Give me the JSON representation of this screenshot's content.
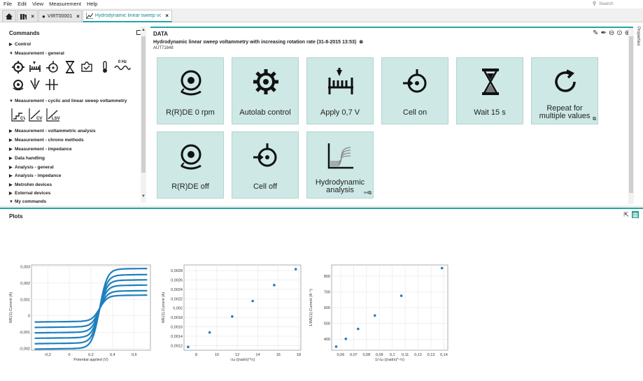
{
  "menu": [
    "File",
    "Edit",
    "View",
    "Measurement",
    "Help"
  ],
  "search": {
    "placeholder": "Search"
  },
  "tabs": [
    {
      "label": "VIRT00001"
    },
    {
      "label": "Hydrodynamic linear sweep volt..."
    }
  ],
  "commands": {
    "title": "Commands",
    "groups": [
      {
        "label": "Control",
        "expanded": false
      },
      {
        "label": "Measurement - general",
        "expanded": true
      },
      {
        "label": "Measurement - cyclic and linear sweep voltammetry",
        "expanded": true
      },
      {
        "label": "Measurement - voltammetric analysis",
        "expanded": false
      },
      {
        "label": "Measurement - chrono methods",
        "expanded": false
      },
      {
        "label": "Measurement - impedance",
        "expanded": false
      },
      {
        "label": "Data handling",
        "expanded": false
      },
      {
        "label": "Analysis - general",
        "expanded": false
      },
      {
        "label": "Analysis - impedance",
        "expanded": false
      },
      {
        "label": "Metrohm devices",
        "expanded": false
      },
      {
        "label": "External devices",
        "expanded": false
      },
      {
        "label": "My commands",
        "expanded": true
      }
    ],
    "general_icons": [
      "rotating-electrode-icon",
      "apply-potential-icon",
      "cell-icon",
      "hourglass-icon",
      "record-signal-icon",
      "thermometer-icon",
      "frequency-0hz-icon",
      "drop-electrode-icon",
      "electrode-icon",
      "split-icon"
    ],
    "zero_hz_label": "0 Hz",
    "sweep_icons": [
      "CV",
      "CV",
      "LSV"
    ]
  },
  "data_panel": {
    "title": "DATA",
    "subtitle": "Hydrodynamic linear sweep voltammetry with increasing rotation rate (31-8-2015 13:53)",
    "instrument": "AUT71848",
    "tiles": [
      {
        "label": "R(R)DE 0 rpm",
        "icon": "rotating-electrode-icon"
      },
      {
        "label": "Autolab control",
        "icon": "gear-icon"
      },
      {
        "label": "Apply 0,7 V",
        "icon": "apply-potential-icon"
      },
      {
        "label": "Cell on",
        "icon": "cell-icon"
      },
      {
        "label": "Wait 15 s",
        "icon": "hourglass-icon"
      },
      {
        "label_line1": "Repeat for",
        "label_line2": "multiple values",
        "icon": "repeat-icon"
      },
      {
        "label": "R(R)DE off",
        "icon": "rotating-electrode-icon"
      },
      {
        "label": "Cell off",
        "icon": "cell-icon"
      },
      {
        "label_line1": "Hydrodynamic",
        "label_line2": "analysis",
        "icon": "hydrodynamic-plot-icon"
      }
    ]
  },
  "properties_label": "Properties",
  "plots": {
    "title": "Plots"
  },
  "chart_data": [
    {
      "type": "line",
      "xlabel": "Potential applied (V)",
      "ylabel": "WE(1).Current (A)",
      "xlim": [
        -0.35,
        0.75
      ],
      "ylim": [
        -0.0021,
        0.0031
      ],
      "x_ticks": [
        "-0,2",
        "0",
        "0,2",
        "0,4",
        "0,6"
      ],
      "x_tick_values": [
        -0.2,
        0,
        0.2,
        0.4,
        0.6
      ],
      "y_ticks": [
        "-0,002",
        "-0,001",
        "0",
        "0,001",
        "0,002",
        "0,003"
      ],
      "y_tick_values": [
        -0.002,
        -0.001,
        0,
        0.001,
        0.002,
        0.003
      ],
      "series": [
        {
          "low": -0.00033,
          "high": 0.00123
        },
        {
          "low": -0.00066,
          "high": 0.0015
        },
        {
          "low": -0.00099,
          "high": 0.00184
        },
        {
          "low": -0.00132,
          "high": 0.00216
        },
        {
          "low": -0.00165,
          "high": 0.00248
        },
        {
          "low": -0.00198,
          "high": 0.00285
        }
      ],
      "color": "#1f7fbf"
    },
    {
      "type": "scatter",
      "xlabel": "√ω ((rad/s)^½)",
      "ylabel": "WE(1).Current (A)",
      "xlim": [
        6.8,
        18.2
      ],
      "ylim": [
        0.0011,
        0.00292
      ],
      "x_ticks": [
        "8",
        "10",
        "12",
        "14",
        "16",
        "18"
      ],
      "x_tick_values": [
        8,
        10,
        12,
        14,
        16,
        18
      ],
      "y_ticks": [
        "0,0012",
        "0,0014",
        "0,0016",
        "0,0018",
        "0,002",
        "0,0022",
        "0,0024",
        "0,0026",
        "0,0028"
      ],
      "y_tick_values": [
        0.0012,
        0.0014,
        0.0016,
        0.0018,
        0.002,
        0.0022,
        0.0024,
        0.0026,
        0.0028
      ],
      "x": [
        7.2,
        9.3,
        11.5,
        13.5,
        15.6,
        17.7
      ],
      "y": [
        0.00117,
        0.00148,
        0.00182,
        0.00215,
        0.00249,
        0.00283
      ],
      "color": "#1f7fbf"
    },
    {
      "type": "scatter",
      "xlabel": "1/√ω ((rad/s)^-½)",
      "ylabel": "1/WE(1).Current (A⁻¹)",
      "xlim": [
        0.053,
        0.143
      ],
      "ylim": [
        330,
        870
      ],
      "x_ticks": [
        "0,06",
        "0,07",
        "0,08",
        "0,09",
        "0,1",
        "0,11",
        "0,12",
        "0,13",
        "0,14"
      ],
      "x_tick_values": [
        0.06,
        0.07,
        0.08,
        0.09,
        0.1,
        0.11,
        0.12,
        0.13,
        0.14
      ],
      "y_ticks": [
        "400",
        "500",
        "600",
        "700",
        "800"
      ],
      "y_tick_values": [
        400,
        500,
        600,
        700,
        800
      ],
      "x": [
        0.0565,
        0.064,
        0.0735,
        0.0865,
        0.107,
        0.1385
      ],
      "y": [
        353,
        402,
        465,
        550,
        675,
        850
      ],
      "color": "#1f7fbf"
    }
  ]
}
